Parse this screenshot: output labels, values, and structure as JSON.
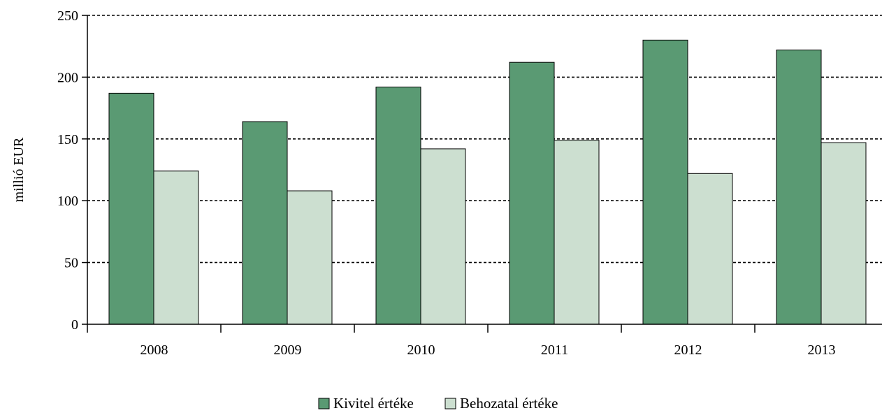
{
  "chart_data": {
    "type": "bar",
    "title": "",
    "xlabel": "",
    "ylabel": "millió EUR",
    "ylim": [
      0,
      250
    ],
    "yticks": [
      0,
      50,
      100,
      150,
      200,
      250
    ],
    "categories": [
      "2008",
      "2009",
      "2010",
      "2011",
      "2012",
      "2013"
    ],
    "series": [
      {
        "name": "Kivitel értéke",
        "color": "#5a9a73",
        "values": [
          187,
          164,
          192,
          212,
          230,
          222
        ]
      },
      {
        "name": "Behozatal értéke",
        "color": "#ccdfd0",
        "values": [
          124,
          108,
          142,
          149,
          122,
          147
        ]
      }
    ],
    "grid": "horizontal-dashed",
    "legend_position": "bottom-center"
  }
}
